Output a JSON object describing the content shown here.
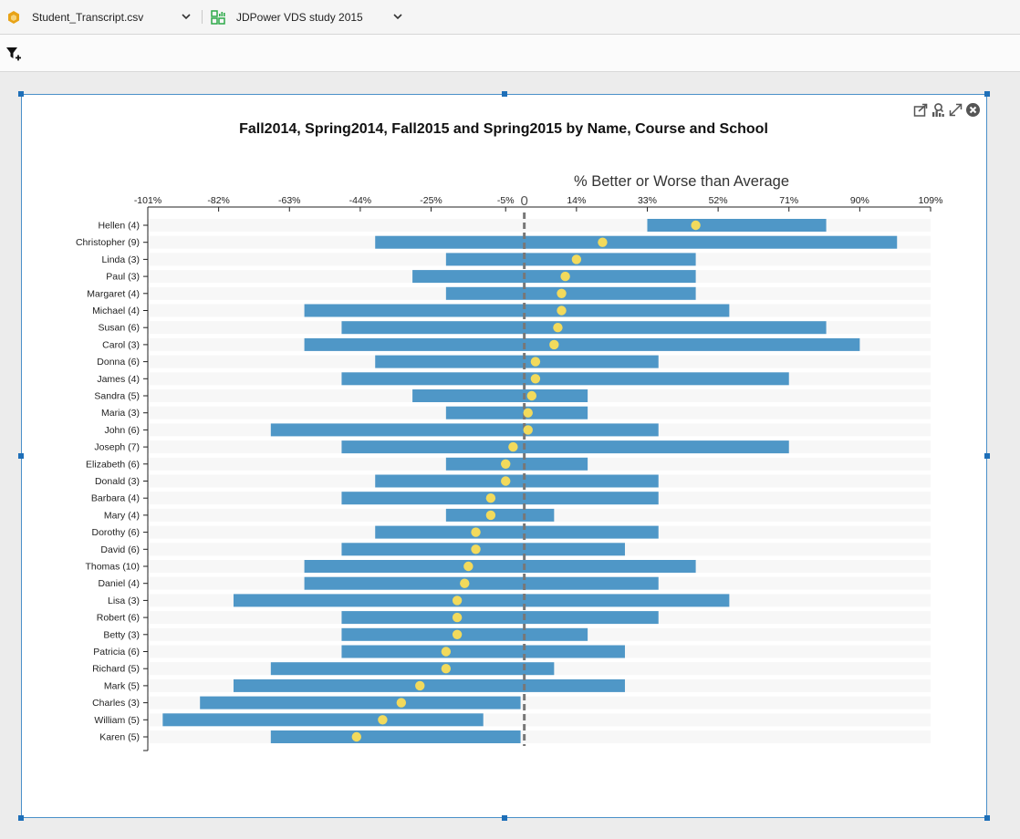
{
  "tabs": [
    {
      "label": "Student_Transcript.csv",
      "icon": "dataset-cube-icon",
      "icon_color": "#e8a317"
    },
    {
      "label": "JDPower VDS study 2015",
      "icon": "dashboard-icon",
      "icon_color": "#2eaa4a"
    }
  ],
  "toolbar": {
    "filter_icon": "add-filter-icon"
  },
  "panel": {
    "icons": [
      "share-icon",
      "data-explore-icon",
      "maximize-icon",
      "close-icon"
    ]
  },
  "chart_data": {
    "type": "bar",
    "title": "Fall2014, Spring2014, Fall2015 and Spring2015 by Name, Course and School",
    "axis_title": "% Better or Worse than Average",
    "xlim": [
      -101,
      109
    ],
    "ticks": [
      -101,
      -82,
      -63,
      -44,
      -25,
      -5,
      14,
      33,
      52,
      71,
      90,
      109
    ],
    "tick_labels": [
      "-101%",
      "-82%",
      "-63%",
      "-44%",
      "-25%",
      "-5%",
      "14%",
      "33%",
      "52%",
      "71%",
      "90%",
      "109%"
    ],
    "zero_label": "0",
    "reference_line": 0,
    "colors": {
      "range_bar": "#4f97c7",
      "marker": "#f2da5c",
      "row_band": "#f7f7f7",
      "zero_line": "#777777"
    },
    "categories": [
      "Hellen (4)",
      "Christopher (9)",
      "Linda (3)",
      "Paul (3)",
      "Margaret (4)",
      "Michael (4)",
      "Susan (6)",
      "Carol (3)",
      "Donna (6)",
      "James (4)",
      "Sandra (5)",
      "Maria (3)",
      "John (6)",
      "Joseph (7)",
      "Elizabeth (6)",
      "Donald (3)",
      "Barbara (4)",
      "Mary (4)",
      "Dorothy (6)",
      "David (6)",
      "Thomas (10)",
      "Daniel (4)",
      "Lisa (3)",
      "Robert (6)",
      "Betty (3)",
      "Patricia (6)",
      "Richard (5)",
      "Mark (5)",
      "Charles (3)",
      "William (5)",
      "Karen (5)"
    ],
    "range_min": [
      33,
      -40,
      -21,
      -30,
      -21,
      -59,
      -49,
      -59,
      -40,
      -49,
      -30,
      -21,
      -68,
      -49,
      -21,
      -40,
      -49,
      -21,
      -40,
      -49,
      -59,
      -59,
      -78,
      -49,
      -49,
      -49,
      -68,
      -78,
      -87,
      -97,
      -68
    ],
    "range_max": [
      81,
      100,
      46,
      46,
      46,
      55,
      81,
      90,
      36,
      71,
      17,
      17,
      36,
      71,
      17,
      36,
      36,
      8,
      36,
      27,
      46,
      36,
      55,
      36,
      17,
      27,
      8,
      27,
      -1,
      -11,
      -1
    ],
    "average": [
      46,
      21,
      14,
      11,
      10,
      10,
      9,
      8,
      3,
      3,
      2,
      1,
      1,
      -3,
      -5,
      -5,
      -9,
      -9,
      -13,
      -13,
      -15,
      -16,
      -18,
      -18,
      -18,
      -21,
      -21,
      -28,
      -33,
      -38,
      -45
    ]
  }
}
